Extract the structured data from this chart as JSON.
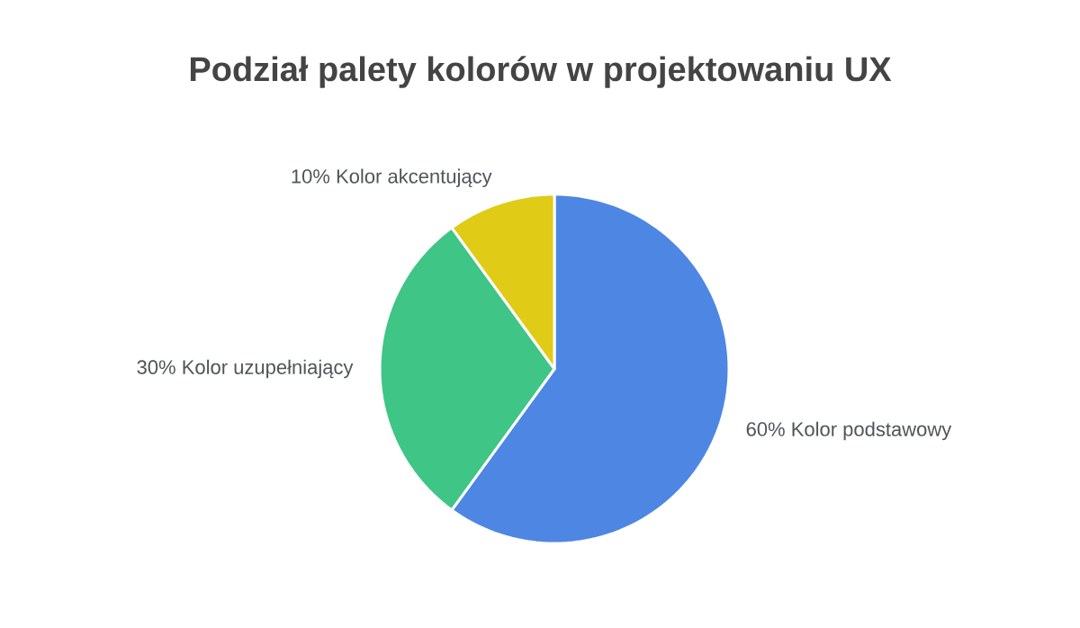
{
  "chart_data": {
    "type": "pie",
    "title": "Podział palety kolorów w projektowaniu UX",
    "categories": [
      "Kolor podstawowy",
      "Kolor uzupełniający",
      "Kolor akcentujący"
    ],
    "values": [
      60,
      30,
      10
    ],
    "value_labels": [
      "60%",
      "30%",
      "10%"
    ],
    "colors": [
      "#4e86e4",
      "#3fc585",
      "#e0cb17"
    ]
  }
}
